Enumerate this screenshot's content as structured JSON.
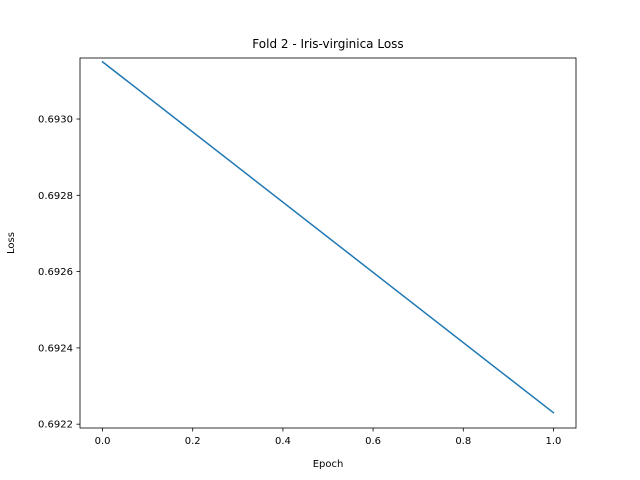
{
  "chart_data": {
    "type": "line",
    "title": "Fold 2 - Iris-virginica Loss",
    "xlabel": "Epoch",
    "ylabel": "Loss",
    "xlim": [
      -0.05,
      1.05
    ],
    "ylim": [
      0.69219,
      0.69316
    ],
    "xticks": [
      0.0,
      0.2,
      0.4,
      0.6,
      0.8,
      1.0
    ],
    "xtick_labels": [
      "0.0",
      "0.2",
      "0.4",
      "0.6",
      "0.8",
      "1.0"
    ],
    "yticks": [
      0.6922,
      0.6924,
      0.6926,
      0.6928,
      0.693
    ],
    "ytick_labels": [
      "0.6922",
      "0.6924",
      "0.6926",
      "0.6928",
      "0.6930"
    ],
    "grid": false,
    "series": [
      {
        "color": "#1f77b4",
        "x": [
          0,
          1
        ],
        "y": [
          0.69315,
          0.69223
        ]
      }
    ]
  }
}
